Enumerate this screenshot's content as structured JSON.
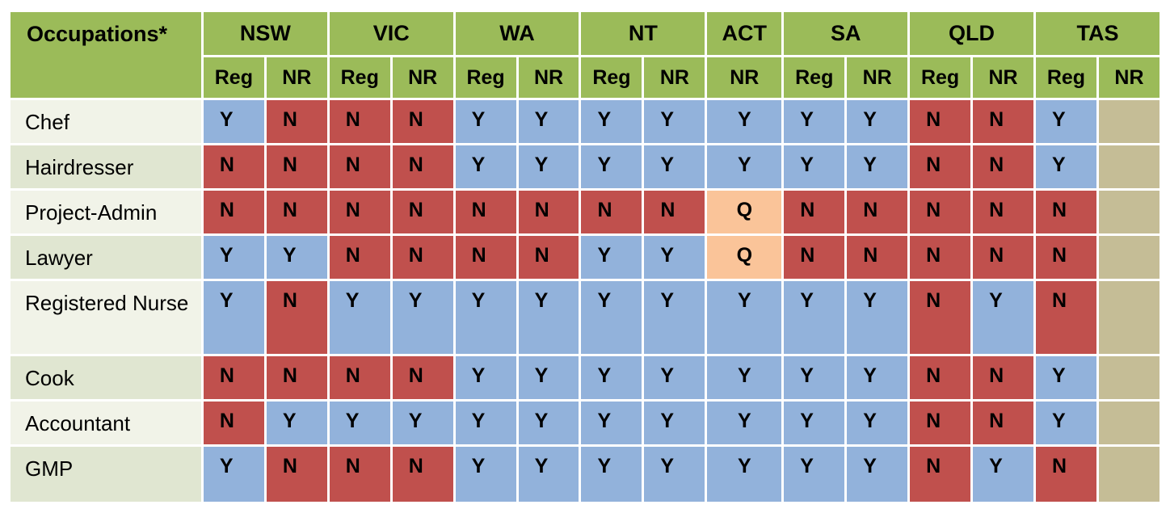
{
  "chart_data": {
    "type": "table",
    "title": "Occupations*",
    "corner_header": "Occupations*",
    "column_groups": [
      {
        "state": "NSW",
        "sub": [
          "Reg",
          "NR"
        ]
      },
      {
        "state": "VIC",
        "sub": [
          "Reg",
          "NR"
        ]
      },
      {
        "state": "WA",
        "sub": [
          "Reg",
          "NR"
        ]
      },
      {
        "state": "NT",
        "sub": [
          "Reg",
          "NR"
        ]
      },
      {
        "state": "ACT",
        "sub": [
          "NR"
        ]
      },
      {
        "state": "SA",
        "sub": [
          "Reg",
          "NR"
        ]
      },
      {
        "state": "QLD",
        "sub": [
          "Reg",
          "NR"
        ]
      },
      {
        "state": "TAS",
        "sub": [
          "Reg",
          "NR"
        ]
      }
    ],
    "flat_columns": [
      "NSW Reg",
      "NSW NR",
      "VIC Reg",
      "VIC NR",
      "WA Reg",
      "WA NR",
      "NT Reg",
      "NT NR",
      "ACT NR",
      "SA Reg",
      "SA NR",
      "QLD Reg",
      "QLD NR",
      "TAS Reg",
      "TAS NR"
    ],
    "rows": [
      {
        "occupation": "Chef",
        "values": [
          "Y",
          "N",
          "N",
          "N",
          "Y",
          "Y",
          "Y",
          "Y",
          "Y",
          "Y",
          "Y",
          "N",
          "N",
          "Y",
          ""
        ]
      },
      {
        "occupation": "Hairdresser",
        "values": [
          "N",
          "N",
          "N",
          "N",
          "Y",
          "Y",
          "Y",
          "Y",
          "Y",
          "Y",
          "Y",
          "N",
          "N",
          "Y",
          ""
        ]
      },
      {
        "occupation": "Project-Admin",
        "values": [
          "N",
          "N",
          "N",
          "N",
          "N",
          "N",
          "N",
          "N",
          "Q",
          "N",
          "N",
          "N",
          "N",
          "N",
          ""
        ]
      },
      {
        "occupation": "Lawyer",
        "values": [
          "Y",
          "Y",
          "N",
          "N",
          "N",
          "N",
          "Y",
          "Y",
          "Q",
          "N",
          "N",
          "N",
          "N",
          "N",
          ""
        ]
      },
      {
        "occupation": "Registered Nurse",
        "values": [
          "Y",
          "N",
          "Y",
          "Y",
          "Y",
          "Y",
          "Y",
          "Y",
          "Y",
          "Y",
          "Y",
          "N",
          "Y",
          "N",
          ""
        ]
      },
      {
        "occupation": "Cook",
        "values": [
          "N",
          "N",
          "N",
          "N",
          "Y",
          "Y",
          "Y",
          "Y",
          "Y",
          "Y",
          "Y",
          "N",
          "N",
          "Y",
          ""
        ]
      },
      {
        "occupation": "Accountant",
        "values": [
          "N",
          "Y",
          "Y",
          "Y",
          "Y",
          "Y",
          "Y",
          "Y",
          "Y",
          "Y",
          "Y",
          "N",
          "N",
          "Y",
          ""
        ]
      },
      {
        "occupation": "GMP",
        "values": [
          "Y",
          "N",
          "N",
          "N",
          "Y",
          "Y",
          "Y",
          "Y",
          "Y",
          "Y",
          "Y",
          "N",
          "Y",
          "N",
          ""
        ]
      }
    ],
    "value_cell_colors": {
      "Y": "#92B2DB",
      "N": "#C0504D",
      "Q": "#FAC499",
      "": "#C5BD96"
    },
    "layout_colors": {
      "header_green": "#9BBB59",
      "row_label_light": "#F1F3E8",
      "row_label_green": "#E0E6D1",
      "grid_lines": "#FFFFFF",
      "text": "#000000"
    }
  }
}
